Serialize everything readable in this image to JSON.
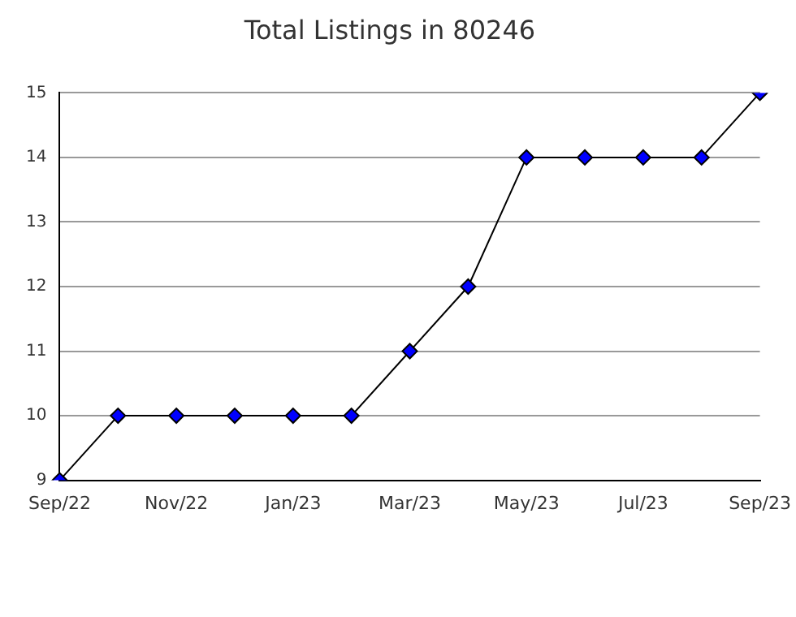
{
  "chart_data": {
    "type": "line",
    "title": "Total Listings in 80246",
    "categories": [
      "Sep/22",
      null,
      "Nov/22",
      null,
      "Jan/23",
      null,
      "Mar/23",
      null,
      "May/23",
      null,
      "Jul/23",
      null,
      "Sep/23"
    ],
    "series": [
      {
        "color": "#0000ff",
        "values": [
          9,
          10,
          10,
          10,
          10,
          10,
          11,
          12,
          14,
          14,
          14,
          14,
          15
        ]
      }
    ],
    "ylim": [
      9,
      15
    ],
    "yticks": [
      9,
      10,
      11,
      12,
      13,
      14,
      15
    ],
    "grid": "y",
    "legend": false,
    "marker": "diamond",
    "line_style": "solid"
  }
}
